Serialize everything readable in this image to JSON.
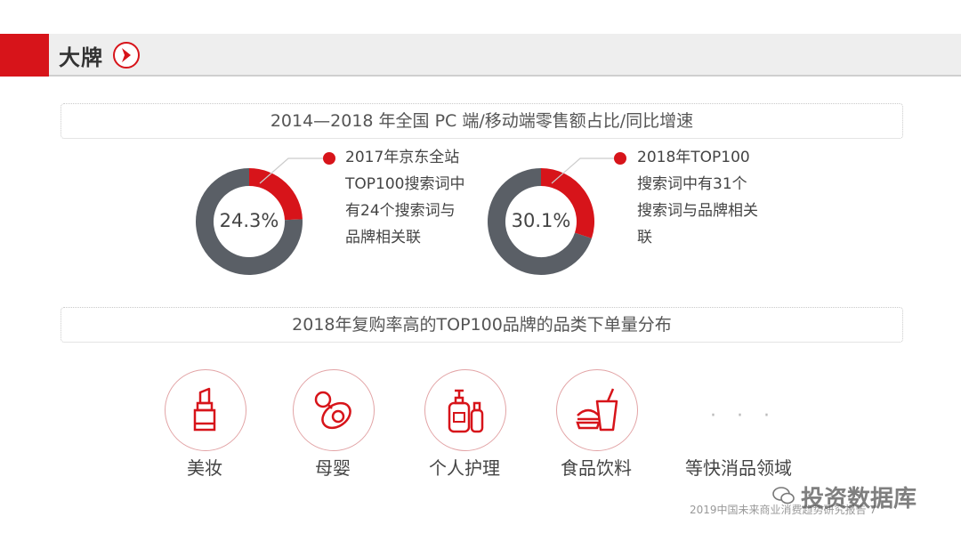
{
  "header": {
    "title": "大牌"
  },
  "section1": {
    "title": "2014—2018 年全国 PC 端/移动端零售额占比/同比增速"
  },
  "section2": {
    "title": "2018年复购率高的TOP100品牌的品类下单量分布"
  },
  "chart_data": [
    {
      "type": "pie",
      "values": [
        24.3,
        75.7
      ],
      "label": "24.3%",
      "colors": [
        "#d7141a",
        "#5a5f66"
      ],
      "annotation": "2017年京东全站\nTOP100搜索词中\n有24个搜索词与\n品牌相关联"
    },
    {
      "type": "pie",
      "values": [
        30.1,
        69.9
      ],
      "label": "30.1%",
      "colors": [
        "#d7141a",
        "#5a5f66"
      ],
      "annotation": "2018年TOP100\n搜索词中有31个\n搜索词与品牌相关\n联"
    }
  ],
  "categories": [
    {
      "label": "美妆",
      "icon": "lipstick-icon"
    },
    {
      "label": "母婴",
      "icon": "pacifier-icon"
    },
    {
      "label": "个人护理",
      "icon": "bottles-icon"
    },
    {
      "label": "食品饮料",
      "icon": "food-drink-icon"
    },
    {
      "label": "等快消品领域",
      "icon": ""
    }
  ],
  "ellipsis": "· · ·",
  "footer": {
    "text": "2019中国未来商业消费趋势研究报告 7"
  },
  "watermark": "投资数据库",
  "colors": {
    "accent": "#d7141a",
    "ring": "#5a5f66"
  }
}
